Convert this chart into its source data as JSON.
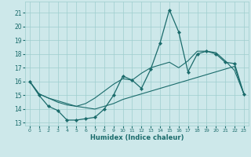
{
  "xlabel": "Humidex (Indice chaleur)",
  "ylabel": "",
  "bg_color": "#cde8ea",
  "grid_color": "#9ecece",
  "line_color": "#1a6b6b",
  "x_ticks": [
    0,
    1,
    2,
    3,
    4,
    5,
    6,
    7,
    8,
    9,
    10,
    11,
    12,
    13,
    14,
    15,
    16,
    17,
    18,
    19,
    20,
    21,
    22,
    23
  ],
  "y_ticks": [
    13,
    14,
    15,
    16,
    17,
    18,
    19,
    20,
    21
  ],
  "xlim": [
    -0.5,
    23.5
  ],
  "ylim": [
    12.8,
    21.8
  ],
  "series1_x": [
    0,
    1,
    2,
    3,
    4,
    5,
    6,
    7,
    8,
    9,
    10,
    11,
    12,
    13,
    14,
    15,
    16,
    17,
    18,
    19,
    20,
    21,
    22,
    23
  ],
  "series1_y": [
    16.0,
    15.0,
    14.2,
    13.9,
    13.2,
    13.2,
    13.3,
    13.4,
    14.0,
    15.0,
    16.4,
    16.1,
    15.5,
    16.9,
    18.8,
    21.2,
    19.6,
    16.7,
    18.0,
    18.2,
    18.0,
    17.4,
    17.3,
    15.1
  ],
  "series2_x": [
    0,
    1,
    2,
    3,
    4,
    5,
    6,
    7,
    8,
    9,
    10,
    11,
    12,
    13,
    14,
    15,
    16,
    17,
    18,
    19,
    20,
    21,
    22,
    23
  ],
  "series2_y": [
    16.0,
    15.1,
    14.8,
    14.6,
    14.4,
    14.2,
    14.1,
    14.0,
    14.2,
    14.4,
    14.7,
    14.9,
    15.1,
    15.3,
    15.5,
    15.7,
    15.9,
    16.1,
    16.3,
    16.5,
    16.7,
    16.9,
    17.1,
    15.1
  ],
  "series3_x": [
    0,
    1,
    2,
    3,
    4,
    5,
    6,
    7,
    8,
    9,
    10,
    11,
    12,
    13,
    14,
    15,
    16,
    17,
    18,
    19,
    20,
    21,
    22,
    23
  ],
  "series3_y": [
    16.0,
    15.1,
    14.8,
    14.5,
    14.3,
    14.2,
    14.4,
    14.8,
    15.3,
    15.8,
    16.2,
    16.1,
    16.6,
    17.0,
    17.2,
    17.4,
    17.0,
    17.5,
    18.2,
    18.2,
    18.1,
    17.5,
    16.8,
    15.1
  ]
}
